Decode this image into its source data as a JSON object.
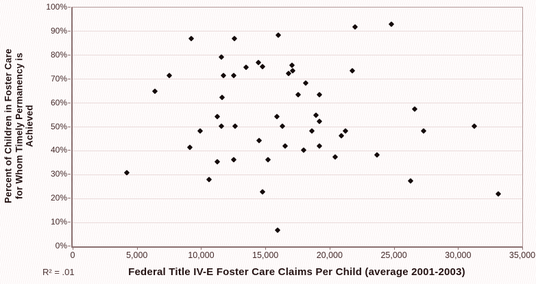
{
  "chart_data": {
    "type": "scatter",
    "title": "",
    "xlabel": "Federal Title IV-E Foster Care Claims Per Child (average 2001-2003)",
    "ylabel": "Percent of Children in Foster Care for Whom Timely Permanency is Achieved",
    "ylabel_lines": [
      "Percent of Children in Foster Care",
      "for Whom Timely Permanency is",
      "Achieved"
    ],
    "annotation": "R² = .01",
    "xlim": [
      0,
      35000
    ],
    "ylim": [
      0,
      100
    ],
    "grid": "horizontal",
    "legend": "none",
    "marker": "diamond",
    "marker_color": "#140a0a",
    "x_ticks": [
      0,
      5000,
      10000,
      15000,
      20000,
      25000,
      30000,
      35000
    ],
    "x_tick_labels": [
      "0",
      "5,000",
      "10,000",
      "15,000",
      "20,000",
      "25,000",
      "30,000",
      "35,000"
    ],
    "y_ticks": [
      0,
      10,
      20,
      30,
      40,
      50,
      60,
      70,
      80,
      90,
      100
    ],
    "y_tick_labels": [
      "0%",
      "10%",
      "20%",
      "30%",
      "40%",
      "50%",
      "60%",
      "70%",
      "80%",
      "90%",
      "100%"
    ],
    "points": [
      [
        4200,
        31
      ],
      [
        6400,
        65
      ],
      [
        7500,
        71.5
      ],
      [
        9150,
        41.5
      ],
      [
        9250,
        87
      ],
      [
        9900,
        48.5
      ],
      [
        10600,
        28
      ],
      [
        11250,
        35.5
      ],
      [
        11250,
        54.5
      ],
      [
        11600,
        50.5
      ],
      [
        11600,
        79.5
      ],
      [
        11650,
        62.5
      ],
      [
        11750,
        71.5
      ],
      [
        12550,
        36.5
      ],
      [
        12550,
        71.5
      ],
      [
        12600,
        87
      ],
      [
        12650,
        50.5
      ],
      [
        13500,
        75
      ],
      [
        14450,
        77
      ],
      [
        14500,
        44.5
      ],
      [
        14800,
        75.5
      ],
      [
        14800,
        23
      ],
      [
        15200,
        36.5
      ],
      [
        15900,
        54.5
      ],
      [
        15950,
        7
      ],
      [
        16000,
        88.5
      ],
      [
        16300,
        50.5
      ],
      [
        16550,
        42
      ],
      [
        16800,
        72.5
      ],
      [
        17050,
        76
      ],
      [
        17100,
        73.5
      ],
      [
        17550,
        63.5
      ],
      [
        18000,
        40.5
      ],
      [
        18150,
        68.5
      ],
      [
        18600,
        48.5
      ],
      [
        18950,
        55
      ],
      [
        19200,
        42
      ],
      [
        19200,
        52.5
      ],
      [
        19200,
        63.5
      ],
      [
        20450,
        37.5
      ],
      [
        20900,
        46.5
      ],
      [
        21250,
        48.5
      ],
      [
        21750,
        73.5
      ],
      [
        22000,
        92
      ],
      [
        23700,
        38.5
      ],
      [
        24800,
        93
      ],
      [
        26300,
        27.5
      ],
      [
        26600,
        57.5
      ],
      [
        27300,
        48.5
      ],
      [
        31250,
        50.5
      ],
      [
        33150,
        22
      ]
    ]
  }
}
